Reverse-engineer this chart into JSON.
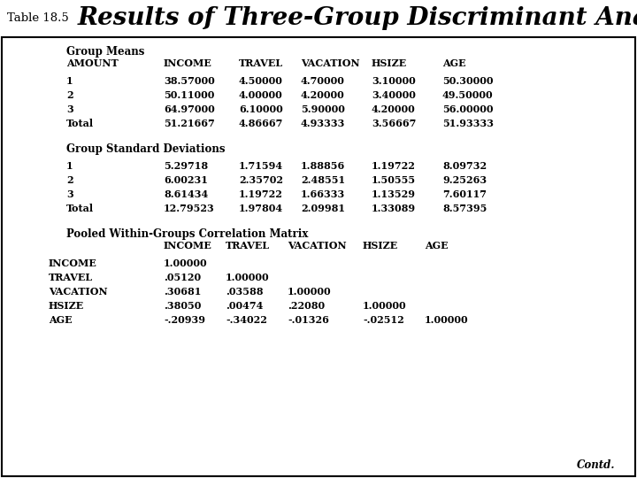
{
  "title_prefix": "Table 18.5",
  "title_main": "Results of Three-Group Discriminant Analysis",
  "bg_color": "#FF69B4",
  "title_bg": "#FFFFFF",
  "section1_header": "Group Means",
  "section1_col_headers": [
    "AMOUNT",
    "INCOME",
    "TRAVEL",
    "VACATION",
    "HSIZE",
    "AGE"
  ],
  "section1_rows": [
    [
      "1",
      "38.57000",
      "4.50000",
      "4.70000",
      "3.10000",
      "50.30000"
    ],
    [
      "2",
      "50.11000",
      "4.00000",
      "4.20000",
      "3.40000",
      "49.50000"
    ],
    [
      "3",
      "64.97000",
      "6.10000",
      "5.90000",
      "4.20000",
      "56.00000"
    ],
    [
      "Total",
      "51.21667",
      "4.86667",
      "4.93333",
      "3.56667",
      "51.93333"
    ]
  ],
  "section2_header": "Group Standard Deviations",
  "section2_rows": [
    [
      "1",
      "5.29718",
      "1.71594",
      "1.88856",
      "1.19722",
      "8.09732"
    ],
    [
      "2",
      "6.00231",
      "2.35702",
      "2.48551",
      "1.50555",
      "9.25263"
    ],
    [
      "3",
      "8.61434",
      "1.19722",
      "1.66333",
      "1.13529",
      "7.60117"
    ],
    [
      "Total",
      "12.79523",
      "1.97804",
      "2.09981",
      "1.33089",
      "8.57395"
    ]
  ],
  "section3_header": "Pooled Within-Groups Correlation Matrix",
  "section3_col_headers": [
    "INCOME",
    "TRAVEL",
    "VACATION",
    "HSIZE",
    "AGE"
  ],
  "section3_row_labels": [
    "INCOME",
    "TRAVEL",
    "VACATION",
    "HSIZE",
    "AGE"
  ],
  "section3_rows": [
    [
      "1.00000",
      "",
      "",
      "",
      ""
    ],
    [
      ".05120",
      "1.00000",
      "",
      "",
      ""
    ],
    [
      ".30681",
      ".03588",
      "1.00000",
      "",
      ""
    ],
    [
      ".38050",
      ".00474",
      ".22080",
      "1.00000",
      ""
    ],
    [
      "-.20939",
      "-.34022",
      "-.01326",
      "-.02512",
      "1.00000"
    ]
  ],
  "footer": "Contd."
}
